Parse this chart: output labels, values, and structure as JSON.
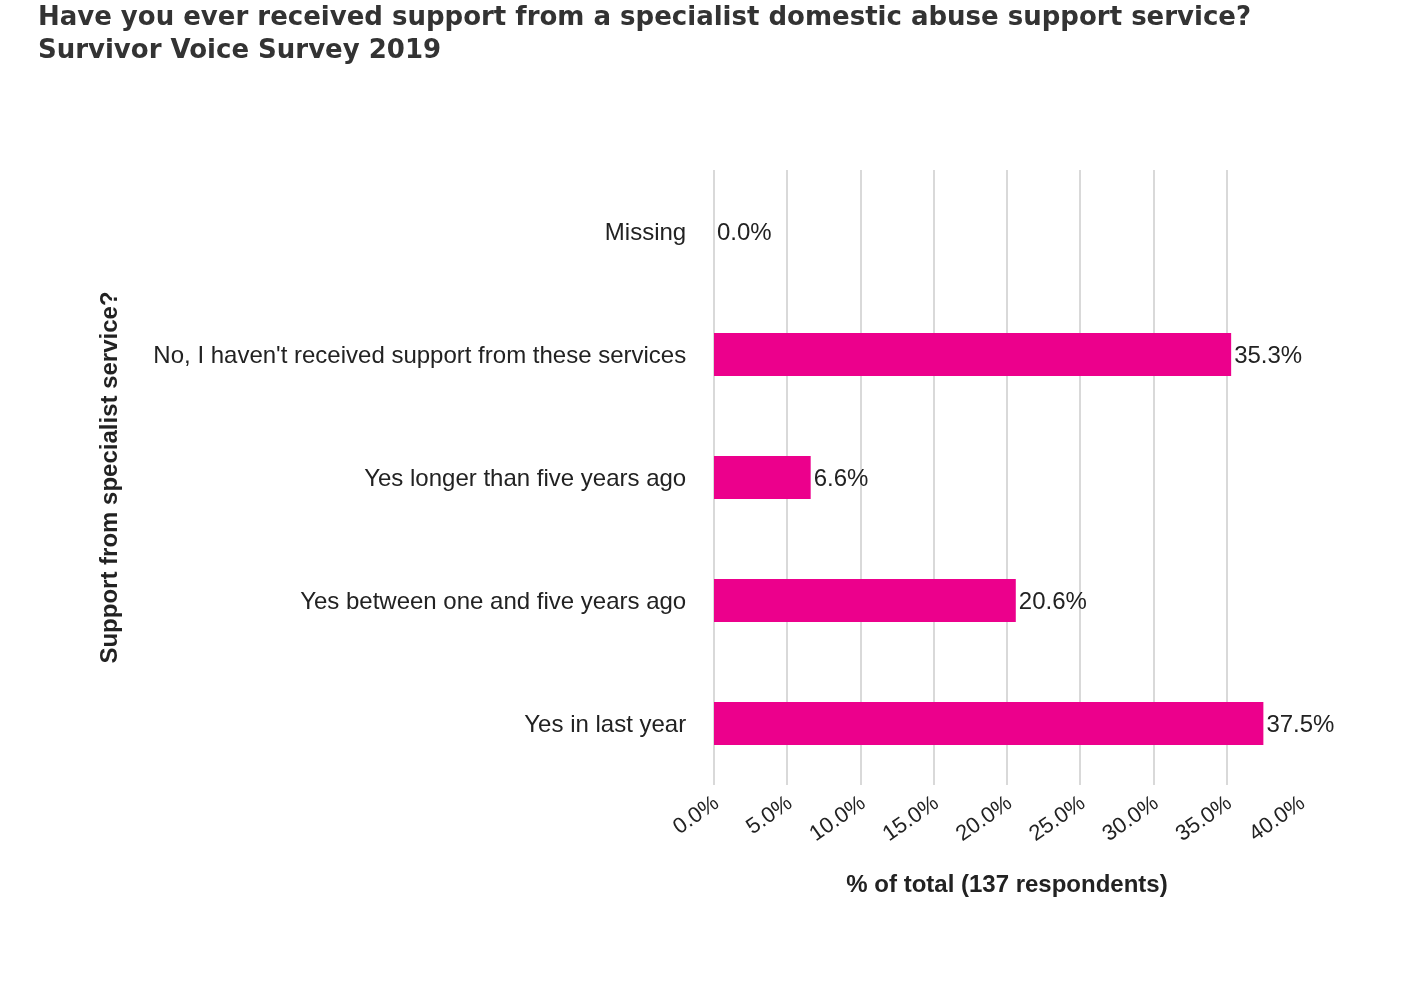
{
  "chart_data": {
    "type": "bar",
    "orientation": "horizontal",
    "title": "Have you ever received support from a specialist domestic abuse support service?\nSurvivor Voice Survey 2019",
    "xlabel": "% of total (137 respondents)",
    "ylabel": "Support from specialist service?",
    "categories": [
      "Missing",
      "No, I haven't received support from these services",
      "Yes longer than five years ago",
      "Yes between one and five years ago",
      "Yes in last year"
    ],
    "values": [
      0.0,
      35.3,
      6.6,
      20.6,
      37.5
    ],
    "value_labels": [
      "0.0%",
      "35.3%",
      "6.6%",
      "20.6%",
      "37.5%"
    ],
    "color": "#ec008c",
    "xlim": [
      0,
      40
    ],
    "xticks": [
      {
        "value": 0,
        "label": "0.0%"
      },
      {
        "value": 5,
        "label": "5.0%"
      },
      {
        "value": 10,
        "label": "10.0%"
      },
      {
        "value": 15,
        "label": "15.0%"
      },
      {
        "value": 20,
        "label": "20.0%"
      },
      {
        "value": 25,
        "label": "25.0%"
      },
      {
        "value": 30,
        "label": "30.0%"
      },
      {
        "value": 35,
        "label": "35.0%"
      },
      {
        "value": 40,
        "label": "40.0%"
      }
    ],
    "grid": "x",
    "legend": false
  }
}
